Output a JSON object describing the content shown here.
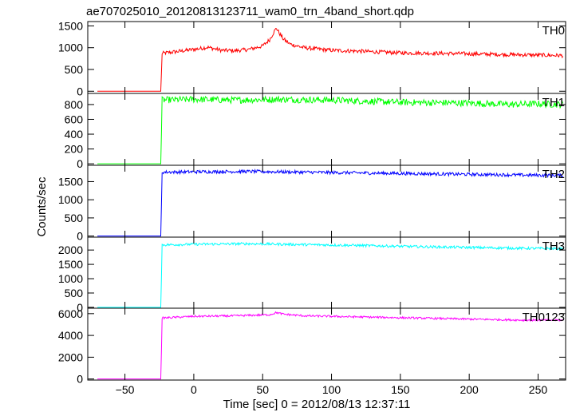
{
  "chart_data": {
    "type": "line",
    "title": "ae707025010_20120813123711_wam0_trn_4band_short.qdp",
    "xlabel": "Time [sec] 0 = 2012/08/13 12:37:11",
    "ylabel": "Counts/sec",
    "xlim": [
      -77,
      270
    ],
    "xticks": [
      -50,
      0,
      50,
      100,
      150,
      200,
      250
    ],
    "xtick_labels": [
      "−50",
      "0",
      "50",
      "100",
      "150",
      "200",
      "250"
    ],
    "grid": false,
    "panels": [
      {
        "name": "TH0",
        "color": "#ff0000",
        "ylim": [
          -50,
          1600
        ],
        "yticks": [
          0,
          500,
          1000,
          1500
        ],
        "ytick_labels": [
          "0",
          "500",
          "1000",
          "1500"
        ],
        "points": [
          [
            -70,
            0
          ],
          [
            -24,
            0
          ],
          [
            -23,
            870
          ],
          [
            -15,
            900
          ],
          [
            0,
            960
          ],
          [
            10,
            1010
          ],
          [
            20,
            940
          ],
          [
            30,
            930
          ],
          [
            40,
            960
          ],
          [
            50,
            1040
          ],
          [
            55,
            1180
          ],
          [
            58,
            1350
          ],
          [
            60,
            1450
          ],
          [
            62,
            1340
          ],
          [
            65,
            1200
          ],
          [
            70,
            1080
          ],
          [
            80,
            1000
          ],
          [
            100,
            940
          ],
          [
            120,
            920
          ],
          [
            150,
            880
          ],
          [
            180,
            870
          ],
          [
            200,
            860
          ],
          [
            230,
            840
          ],
          [
            250,
            830
          ],
          [
            268,
            820
          ]
        ],
        "noise": 45
      },
      {
        "name": "TH1",
        "color": "#00ff00",
        "ylim": [
          -20,
          950
        ],
        "yticks": [
          0,
          200,
          400,
          600,
          800
        ],
        "ytick_labels": [
          "0",
          "200",
          "400",
          "600",
          "800"
        ],
        "points": [
          [
            -70,
            0
          ],
          [
            -24,
            0
          ],
          [
            -23,
            860
          ],
          [
            0,
            870
          ],
          [
            30,
            860
          ],
          [
            60,
            870
          ],
          [
            100,
            860
          ],
          [
            150,
            830
          ],
          [
            200,
            820
          ],
          [
            230,
            800
          ],
          [
            250,
            810
          ],
          [
            268,
            800
          ]
        ],
        "noise": 45
      },
      {
        "name": "TH2",
        "color": "#0000ff",
        "ylim": [
          -30,
          1950
        ],
        "yticks": [
          0,
          500,
          1000,
          1500
        ],
        "ytick_labels": [
          "0",
          "500",
          "1000",
          "1500"
        ],
        "points": [
          [
            -70,
            0
          ],
          [
            -24,
            0
          ],
          [
            -23,
            1760
          ],
          [
            0,
            1770
          ],
          [
            40,
            1780
          ],
          [
            80,
            1760
          ],
          [
            120,
            1740
          ],
          [
            160,
            1720
          ],
          [
            200,
            1700
          ],
          [
            240,
            1680
          ],
          [
            268,
            1670
          ]
        ],
        "noise": 45
      },
      {
        "name": "TH3",
        "color": "#00ffff",
        "ylim": [
          -30,
          2450
        ],
        "yticks": [
          0,
          500,
          1000,
          1500,
          2000
        ],
        "ytick_labels": [
          "0",
          "500",
          "1000",
          "1500",
          "2000"
        ],
        "points": [
          [
            -70,
            0
          ],
          [
            -24,
            0
          ],
          [
            -23,
            2180
          ],
          [
            0,
            2200
          ],
          [
            40,
            2220
          ],
          [
            80,
            2190
          ],
          [
            120,
            2160
          ],
          [
            160,
            2120
          ],
          [
            200,
            2090
          ],
          [
            240,
            2060
          ],
          [
            268,
            2050
          ]
        ],
        "noise": 45
      },
      {
        "name": "TH0123",
        "color": "#ff00ff",
        "ylim": [
          -100,
          6500
        ],
        "yticks": [
          0,
          2000,
          4000,
          6000
        ],
        "ytick_labels": [
          "0",
          "2000",
          "4000",
          "6000"
        ],
        "points": [
          [
            -70,
            0
          ],
          [
            -24,
            0
          ],
          [
            -23,
            5600
          ],
          [
            0,
            5750
          ],
          [
            30,
            5800
          ],
          [
            55,
            5900
          ],
          [
            60,
            6100
          ],
          [
            65,
            5950
          ],
          [
            80,
            5800
          ],
          [
            120,
            5700
          ],
          [
            160,
            5600
          ],
          [
            200,
            5500
          ],
          [
            240,
            5400
          ],
          [
            268,
            5400
          ]
        ],
        "noise": 90
      }
    ]
  }
}
